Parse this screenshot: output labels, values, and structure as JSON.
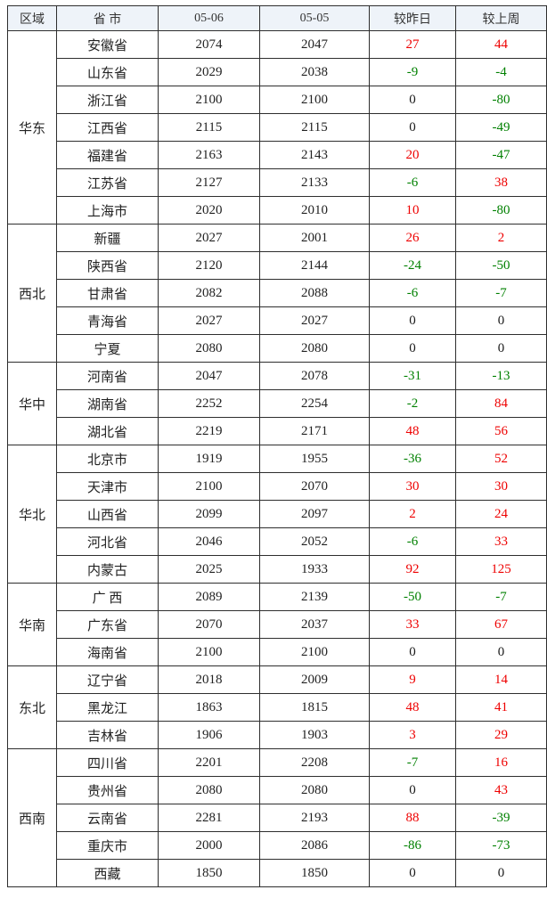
{
  "colors": {
    "increase": "#ee0000",
    "decrease": "#008000",
    "neutral": "#1a1a1a",
    "header_bg": "#eef3f9",
    "border": "#2e2e2e"
  },
  "chart_data": {
    "type": "table",
    "columns": [
      "区域",
      "省 市",
      "05-06",
      "05-05",
      "较昨日",
      "较上周"
    ],
    "regions": [
      {
        "name": "华东",
        "rows": [
          {
            "province": "安徽省",
            "price_0506": 2074,
            "price_0505": 2047,
            "vs_yesterday": 27,
            "vs_last_week": 44
          },
          {
            "province": "山东省",
            "price_0506": 2029,
            "price_0505": 2038,
            "vs_yesterday": -9,
            "vs_last_week": -4
          },
          {
            "province": "浙江省",
            "price_0506": 2100,
            "price_0505": 2100,
            "vs_yesterday": 0,
            "vs_last_week": -80
          },
          {
            "province": "江西省",
            "price_0506": 2115,
            "price_0505": 2115,
            "vs_yesterday": 0,
            "vs_last_week": -49
          },
          {
            "province": "福建省",
            "price_0506": 2163,
            "price_0505": 2143,
            "vs_yesterday": 20,
            "vs_last_week": -47
          },
          {
            "province": "江苏省",
            "price_0506": 2127,
            "price_0505": 2133,
            "vs_yesterday": -6,
            "vs_last_week": 38
          },
          {
            "province": "上海市",
            "price_0506": 2020,
            "price_0505": 2010,
            "vs_yesterday": 10,
            "vs_last_week": -80
          }
        ]
      },
      {
        "name": "西北",
        "rows": [
          {
            "province": "新疆",
            "price_0506": 2027,
            "price_0505": 2001,
            "vs_yesterday": 26,
            "vs_last_week": 2
          },
          {
            "province": "陕西省",
            "price_0506": 2120,
            "price_0505": 2144,
            "vs_yesterday": -24,
            "vs_last_week": -50
          },
          {
            "province": "甘肃省",
            "price_0506": 2082,
            "price_0505": 2088,
            "vs_yesterday": -6,
            "vs_last_week": -7
          },
          {
            "province": "青海省",
            "price_0506": 2027,
            "price_0505": 2027,
            "vs_yesterday": 0,
            "vs_last_week": 0
          },
          {
            "province": "宁夏",
            "price_0506": 2080,
            "price_0505": 2080,
            "vs_yesterday": 0,
            "vs_last_week": 0
          }
        ]
      },
      {
        "name": "华中",
        "rows": [
          {
            "province": "河南省",
            "price_0506": 2047,
            "price_0505": 2078,
            "vs_yesterday": -31,
            "vs_last_week": -13
          },
          {
            "province": "湖南省",
            "price_0506": 2252,
            "price_0505": 2254,
            "vs_yesterday": -2,
            "vs_last_week": 84
          },
          {
            "province": "湖北省",
            "price_0506": 2219,
            "price_0505": 2171,
            "vs_yesterday": 48,
            "vs_last_week": 56
          }
        ]
      },
      {
        "name": "华北",
        "rows": [
          {
            "province": "北京市",
            "price_0506": 1919,
            "price_0505": 1955,
            "vs_yesterday": -36,
            "vs_last_week": 52
          },
          {
            "province": "天津市",
            "price_0506": 2100,
            "price_0505": 2070,
            "vs_yesterday": 30,
            "vs_last_week": 30
          },
          {
            "province": "山西省",
            "price_0506": 2099,
            "price_0505": 2097,
            "vs_yesterday": 2,
            "vs_last_week": 24
          },
          {
            "province": "河北省",
            "price_0506": 2046,
            "price_0505": 2052,
            "vs_yesterday": -6,
            "vs_last_week": 33
          },
          {
            "province": "内蒙古",
            "price_0506": 2025,
            "price_0505": 1933,
            "vs_yesterday": 92,
            "vs_last_week": 125
          }
        ]
      },
      {
        "name": "华南",
        "rows": [
          {
            "province": "广 西",
            "price_0506": 2089,
            "price_0505": 2139,
            "vs_yesterday": -50,
            "vs_last_week": -7
          },
          {
            "province": "广东省",
            "price_0506": 2070,
            "price_0505": 2037,
            "vs_yesterday": 33,
            "vs_last_week": 67
          },
          {
            "province": "海南省",
            "price_0506": 2100,
            "price_0505": 2100,
            "vs_yesterday": 0,
            "vs_last_week": 0
          }
        ]
      },
      {
        "name": "东北",
        "rows": [
          {
            "province": "辽宁省",
            "price_0506": 2018,
            "price_0505": 2009,
            "vs_yesterday": 9,
            "vs_last_week": 14
          },
          {
            "province": "黑龙江",
            "price_0506": 1863,
            "price_0505": 1815,
            "vs_yesterday": 48,
            "vs_last_week": 41
          },
          {
            "province": "吉林省",
            "price_0506": 1906,
            "price_0505": 1903,
            "vs_yesterday": 3,
            "vs_last_week": 29
          }
        ]
      },
      {
        "name": "西南",
        "rows": [
          {
            "province": "四川省",
            "price_0506": 2201,
            "price_0505": 2208,
            "vs_yesterday": -7,
            "vs_last_week": 16
          },
          {
            "province": "贵州省",
            "price_0506": 2080,
            "price_0505": 2080,
            "vs_yesterday": 0,
            "vs_last_week": 43
          },
          {
            "province": "云南省",
            "price_0506": 2281,
            "price_0505": 2193,
            "vs_yesterday": 88,
            "vs_last_week": -39
          },
          {
            "province": "重庆市",
            "price_0506": 2000,
            "price_0505": 2086,
            "vs_yesterday": -86,
            "vs_last_week": -73
          },
          {
            "province": "西藏",
            "price_0506": 1850,
            "price_0505": 1850,
            "vs_yesterday": 0,
            "vs_last_week": 0
          }
        ]
      }
    ]
  }
}
